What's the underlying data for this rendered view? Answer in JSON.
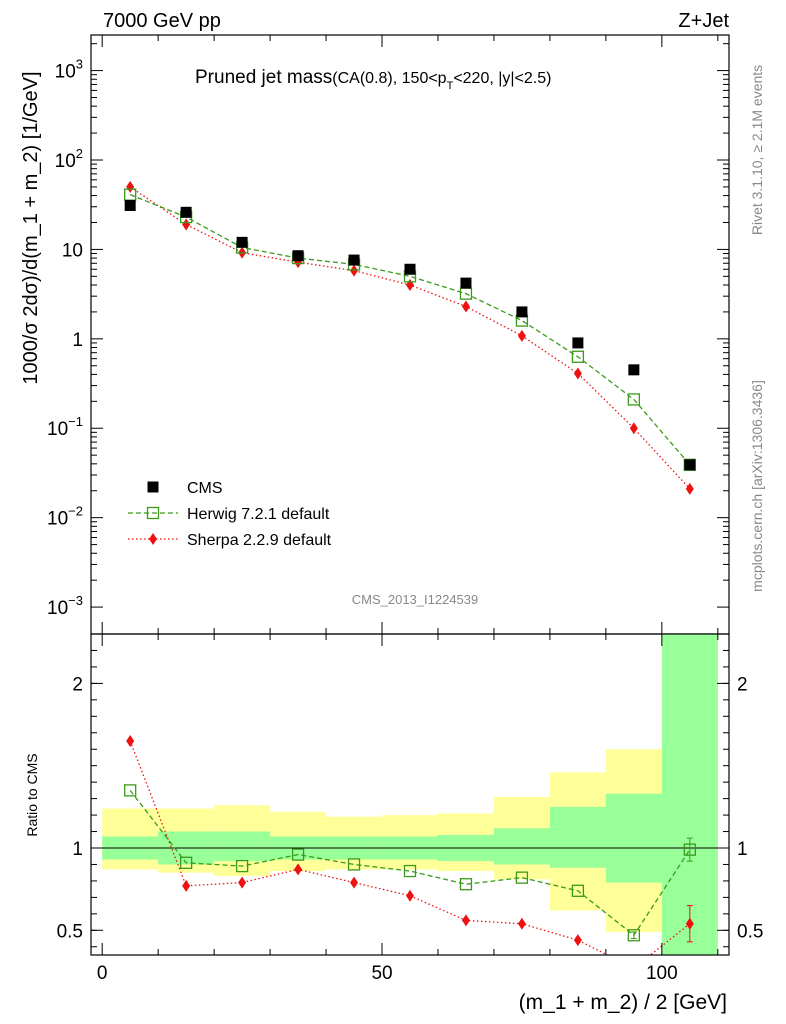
{
  "header": {
    "left": "7000 GeV pp",
    "right": "Z+Jet"
  },
  "side_labels": {
    "rivet": "Rivet 3.1.10, ≥ 2.1M events",
    "mcplots": "mcplots.cern.ch [arXiv:1306.3436]"
  },
  "watermark": "CMS_2013_I1224539",
  "title_main": "Pruned jet mass",
  "title_sub_a": "(CA(0.8), 150<p",
  "title_sub_b": "T",
  "title_sub_c": "<220, |y|<2.5)",
  "chart_data": [
    {
      "type": "scatter",
      "panel": "main",
      "yscale": "log",
      "ylabel": "1000/σ 2dσ)/d(m_1 + m_2) [1/GeV]",
      "ylim": [
        0.0005,
        2500
      ],
      "xlim": [
        -2,
        112
      ],
      "yticks": [
        {
          "v": 0.001,
          "b": "10",
          "e": "−3"
        },
        {
          "v": 0.01,
          "b": "10",
          "e": "−2"
        },
        {
          "v": 0.1,
          "b": "10",
          "e": "−1"
        },
        {
          "v": 1,
          "b": "1",
          "e": ""
        },
        {
          "v": 10,
          "b": "10",
          "e": ""
        },
        {
          "v": 100,
          "b": "10",
          "e": "2"
        },
        {
          "v": 1000,
          "b": "10",
          "e": "3"
        }
      ],
      "legend_position": "bottom-left",
      "series": [
        {
          "name": "CMS",
          "color": "#000000",
          "marker": "square",
          "x": [
            5,
            15,
            25,
            35,
            45,
            55,
            65,
            75,
            85,
            95,
            105
          ],
          "y": [
            31,
            26,
            12,
            8.5,
            7.6,
            6.0,
            4.2,
            2.0,
            0.9,
            0.45,
            0.039
          ]
        },
        {
          "name": "Herwig 7.2.1 default",
          "color": "#3a9a1a",
          "marker": "open-square",
          "line": "dashed",
          "x": [
            5,
            15,
            25,
            35,
            45,
            55,
            65,
            75,
            85,
            95,
            105
          ],
          "y": [
            41,
            23,
            10.5,
            8.0,
            6.8,
            5.0,
            3.2,
            1.6,
            0.63,
            0.21,
            0.039
          ]
        },
        {
          "name": "Sherpa 2.2.9 default",
          "color": "#ee1111",
          "marker": "diamond",
          "line": "dotted",
          "x": [
            5,
            15,
            25,
            35,
            45,
            55,
            65,
            75,
            85,
            95,
            105
          ],
          "y": [
            50,
            19,
            9.2,
            7.2,
            5.8,
            4.0,
            2.3,
            1.08,
            0.41,
            0.1,
            0.021
          ]
        }
      ]
    },
    {
      "type": "scatter",
      "panel": "ratio",
      "ylabel": "Ratio to CMS",
      "xlabel": "(m_1 + m_2) / 2 [GeV]",
      "xlim": [
        -2,
        112
      ],
      "ylim": [
        0.35,
        2.3
      ],
      "xticks": [
        0,
        50,
        100
      ],
      "yticks": [
        0.5,
        1,
        2
      ],
      "bins": [
        0,
        10,
        20,
        30,
        40,
        50,
        60,
        70,
        80,
        90,
        100,
        110
      ],
      "band_stat": [
        [
          0.93,
          1.07
        ],
        [
          0.9,
          1.1
        ],
        [
          0.92,
          1.1
        ],
        [
          0.93,
          1.07
        ],
        [
          0.93,
          1.07
        ],
        [
          0.93,
          1.07
        ],
        [
          0.92,
          1.08
        ],
        [
          0.9,
          1.12
        ],
        [
          0.88,
          1.25
        ],
        [
          0.79,
          1.33
        ],
        [
          0.35,
          2.3
        ]
      ],
      "band_total": [
        [
          0.87,
          1.24
        ],
        [
          0.85,
          1.24
        ],
        [
          0.83,
          1.26
        ],
        [
          0.86,
          1.22
        ],
        [
          0.87,
          1.19
        ],
        [
          0.87,
          1.2
        ],
        [
          0.86,
          1.21
        ],
        [
          0.81,
          1.31
        ],
        [
          0.62,
          1.46
        ],
        [
          0.49,
          1.6
        ],
        [
          0.35,
          2.3
        ]
      ],
      "series": [
        {
          "name": "Herwig 7.2.1 default",
          "color": "#3a9a1a",
          "marker": "open-square",
          "line": "dashed",
          "x": [
            5,
            15,
            25,
            35,
            45,
            55,
            65,
            75,
            85,
            95,
            105
          ],
          "y": [
            1.35,
            0.91,
            0.89,
            0.96,
            0.9,
            0.86,
            0.78,
            0.82,
            0.74,
            0.47,
            0.99
          ],
          "err": [
            0,
            0,
            0,
            0,
            0,
            0,
            0,
            0,
            0,
            0.02,
            0.07
          ]
        },
        {
          "name": "Sherpa 2.2.9 default",
          "color": "#ee1111",
          "marker": "diamond",
          "line": "dotted",
          "x": [
            5,
            15,
            25,
            35,
            45,
            55,
            65,
            75,
            85,
            95,
            105
          ],
          "y": [
            1.65,
            0.77,
            0.79,
            0.87,
            0.79,
            0.71,
            0.56,
            0.54,
            0.44,
            0.27,
            0.54
          ],
          "err": [
            0,
            0,
            0,
            0,
            0,
            0,
            0,
            0,
            0,
            0,
            0.11
          ]
        }
      ]
    }
  ]
}
